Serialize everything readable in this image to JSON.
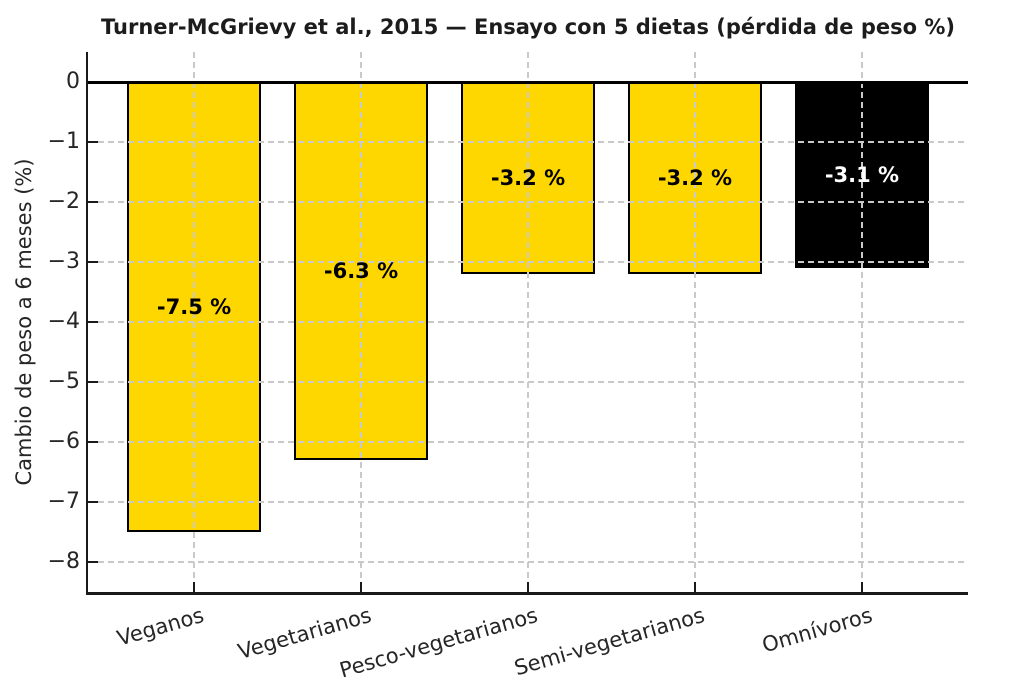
{
  "chart_data": {
    "type": "bar",
    "title": "Turner-McGrievy et al., 2015 — Ensayo con 5 dietas (pérdida de peso %)",
    "ylabel": "Cambio de peso a 6 meses (%)",
    "xlabel": "",
    "categories": [
      "Veganos",
      "Vegetarianos",
      "Pesco-vegetarianos",
      "Semi-vegetarianos",
      "Omnívoros"
    ],
    "values": [
      -7.5,
      -6.3,
      -3.2,
      -3.2,
      -3.1
    ],
    "bar_labels": [
      "-7.5 %",
      "-6.3 %",
      "-3.2 %",
      "-3.2 %",
      "-3.1 %"
    ],
    "bar_colors": [
      "#FFD700",
      "#FFD700",
      "#FFD700",
      "#FFD700",
      "#000000"
    ],
    "bar_label_colors": [
      "#000000",
      "#000000",
      "#000000",
      "#000000",
      "#ffffff"
    ],
    "bar_edge_color": "#000000",
    "y_ticks": [
      {
        "value": 0,
        "label": "0"
      },
      {
        "value": -1,
        "label": "−1"
      },
      {
        "value": -2,
        "label": "−2"
      },
      {
        "value": -3,
        "label": "−3"
      },
      {
        "value": -4,
        "label": "−4"
      },
      {
        "value": -5,
        "label": "−5"
      },
      {
        "value": -6,
        "label": "−6"
      },
      {
        "value": -7,
        "label": "−7"
      },
      {
        "value": -8,
        "label": "−8"
      }
    ],
    "ylim": [
      0.5,
      -8.5
    ],
    "xlim": [
      -0.635,
      4.635
    ],
    "bar_width": 0.8,
    "grid": true,
    "grid_on_top_of_bars": true,
    "gridline_color": "#c9c9c9",
    "zero_line_color": "#000000",
    "x_tick_rotation_deg": 16,
    "tick_direction": "in",
    "background": "#ffffff"
  }
}
